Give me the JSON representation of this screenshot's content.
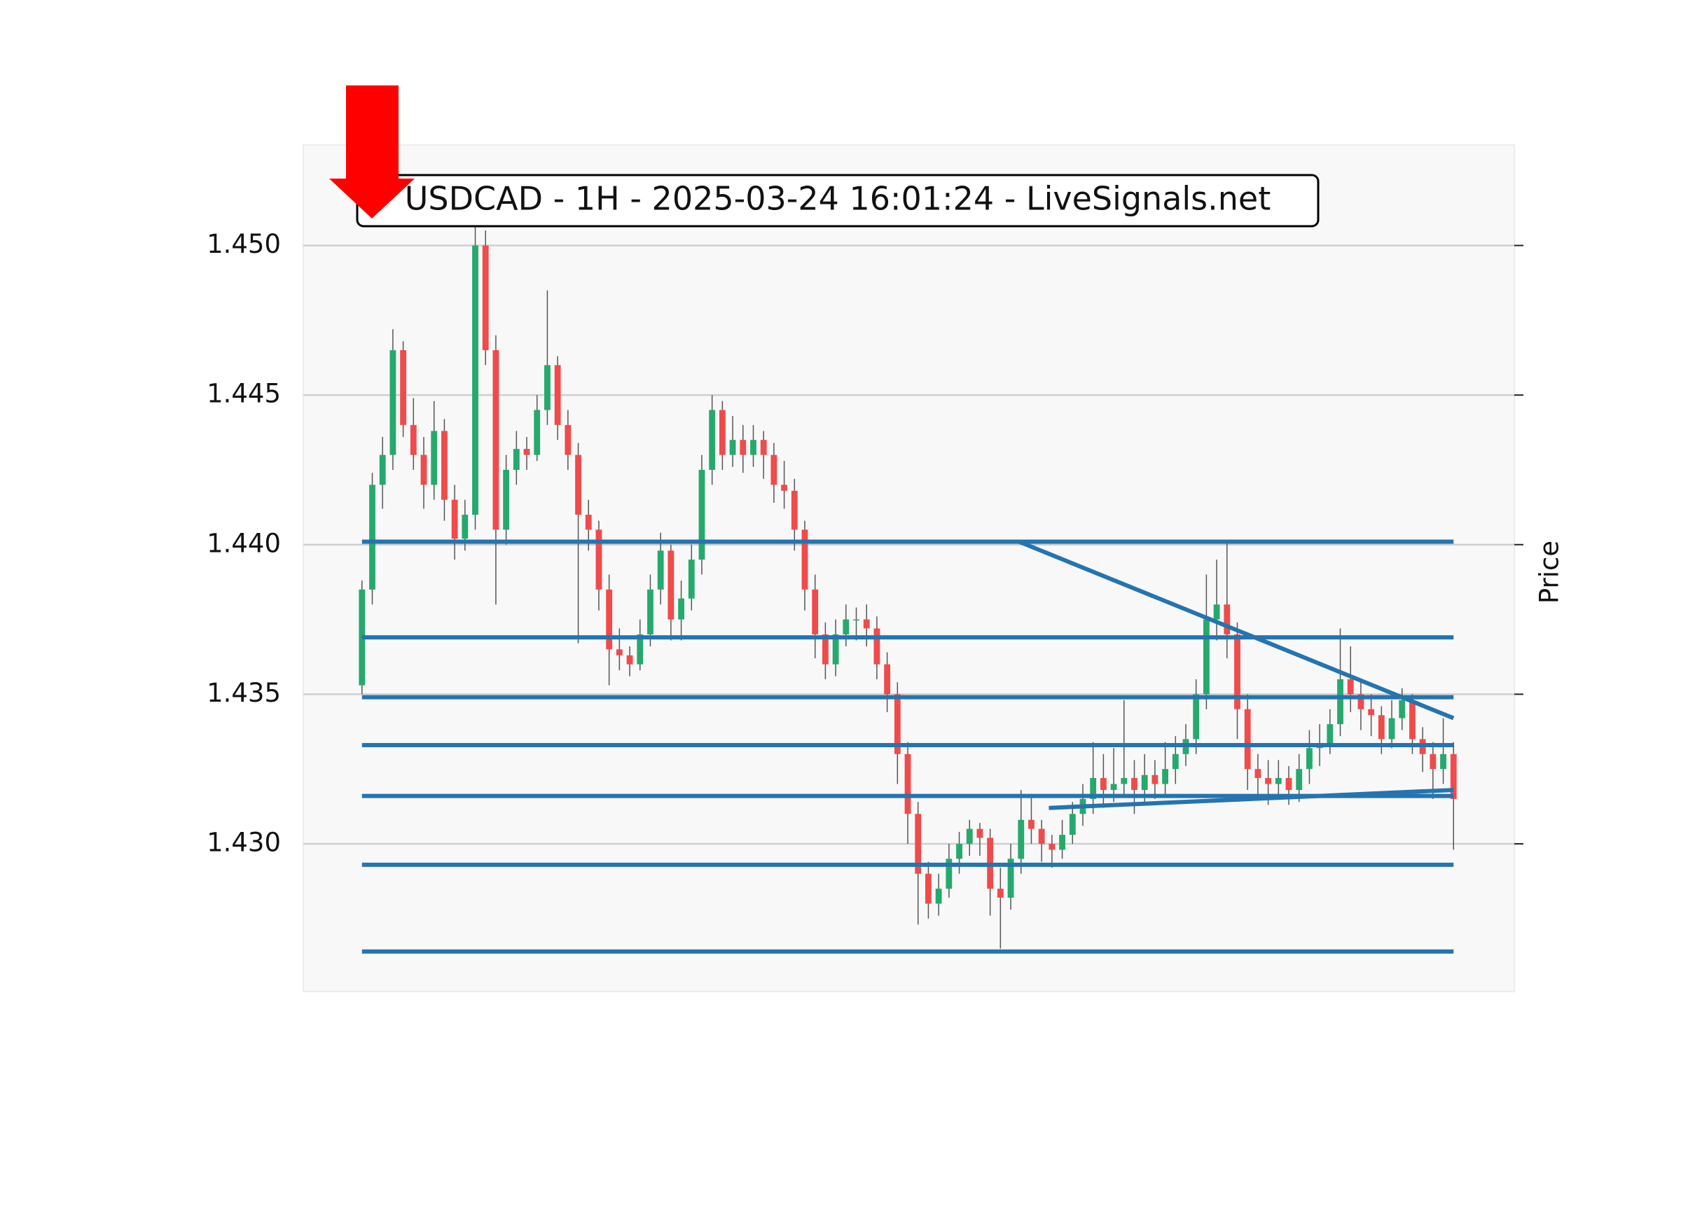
{
  "chart_data": {
    "type": "candlestick",
    "title": "USDCAD - 1H - 2025-03-24 16:01:24 - LiveSignals.net",
    "y_label": "Price",
    "ylim": [
      1.42506,
      1.45336
    ],
    "yticks": [
      {
        "value": 1.43,
        "label": "1.430"
      },
      {
        "value": 1.435,
        "label": "1.435"
      },
      {
        "value": 1.44,
        "label": "1.440"
      },
      {
        "value": 1.445,
        "label": "1.445"
      },
      {
        "value": 1.45,
        "label": "1.450"
      }
    ],
    "xlim": [
      -5.7,
      111.9
    ],
    "grid": true,
    "up_color": "#26a96c",
    "down_color": "#ef4b4b",
    "line_color": "#2474b0",
    "candles": [
      [
        1.4353,
        1.4388,
        1.435,
        1.4385
      ],
      [
        1.4385,
        1.4424,
        1.438,
        1.442
      ],
      [
        1.442,
        1.4436,
        1.4412,
        1.443
      ],
      [
        1.443,
        1.4472,
        1.4425,
        1.4465
      ],
      [
        1.4465,
        1.4468,
        1.4436,
        1.444
      ],
      [
        1.444,
        1.4449,
        1.4425,
        1.443
      ],
      [
        1.443,
        1.4436,
        1.4412,
        1.442
      ],
      [
        1.442,
        1.4448,
        1.4415,
        1.4438
      ],
      [
        1.4438,
        1.4442,
        1.4408,
        1.4415
      ],
      [
        1.4415,
        1.442,
        1.4395,
        1.4402
      ],
      [
        1.4402,
        1.4415,
        1.4398,
        1.441
      ],
      [
        1.441,
        1.4515,
        1.4405,
        1.45
      ],
      [
        1.45,
        1.4505,
        1.446,
        1.4465
      ],
      [
        1.4465,
        1.447,
        1.438,
        1.4405
      ],
      [
        1.4405,
        1.443,
        1.44,
        1.4425
      ],
      [
        1.4425,
        1.4438,
        1.442,
        1.4432
      ],
      [
        1.4432,
        1.4436,
        1.4425,
        1.443
      ],
      [
        1.443,
        1.445,
        1.4428,
        1.4445
      ],
      [
        1.4445,
        1.4485,
        1.444,
        1.446
      ],
      [
        1.446,
        1.4463,
        1.4435,
        1.444
      ],
      [
        1.444,
        1.4445,
        1.4425,
        1.443
      ],
      [
        1.443,
        1.4434,
        1.4367,
        1.441
      ],
      [
        1.441,
        1.4415,
        1.4398,
        1.4405
      ],
      [
        1.4405,
        1.4408,
        1.4378,
        1.4385
      ],
      [
        1.4385,
        1.439,
        1.4353,
        1.4365
      ],
      [
        1.4365,
        1.4372,
        1.4358,
        1.4363
      ],
      [
        1.4363,
        1.4366,
        1.4356,
        1.436
      ],
      [
        1.436,
        1.4375,
        1.4358,
        1.437
      ],
      [
        1.437,
        1.439,
        1.4366,
        1.4385
      ],
      [
        1.4385,
        1.4404,
        1.438,
        1.4398
      ],
      [
        1.4398,
        1.44,
        1.4368,
        1.4375
      ],
      [
        1.4375,
        1.4388,
        1.4368,
        1.4382
      ],
      [
        1.4382,
        1.44,
        1.4378,
        1.4395
      ],
      [
        1.4395,
        1.443,
        1.439,
        1.4425
      ],
      [
        1.4425,
        1.445,
        1.442,
        1.4445
      ],
      [
        1.4445,
        1.4448,
        1.4425,
        1.443
      ],
      [
        1.443,
        1.4443,
        1.4426,
        1.4435
      ],
      [
        1.4435,
        1.444,
        1.4424,
        1.443
      ],
      [
        1.443,
        1.444,
        1.4426,
        1.4435
      ],
      [
        1.4435,
        1.4438,
        1.4422,
        1.443
      ],
      [
        1.443,
        1.4434,
        1.4414,
        1.442
      ],
      [
        1.442,
        1.4428,
        1.4412,
        1.4418
      ],
      [
        1.4418,
        1.4422,
        1.4398,
        1.4405
      ],
      [
        1.4405,
        1.4408,
        1.4378,
        1.4385
      ],
      [
        1.4385,
        1.439,
        1.4362,
        1.437
      ],
      [
        1.437,
        1.4374,
        1.4355,
        1.436
      ],
      [
        1.436,
        1.4375,
        1.4356,
        1.437
      ],
      [
        1.437,
        1.438,
        1.4366,
        1.4375
      ],
      [
        1.4375,
        1.4379,
        1.4368,
        1.4375
      ],
      [
        1.4375,
        1.438,
        1.4366,
        1.4372
      ],
      [
        1.4372,
        1.4376,
        1.4355,
        1.436
      ],
      [
        1.436,
        1.4364,
        1.4344,
        1.435
      ],
      [
        1.435,
        1.4354,
        1.432,
        1.433
      ],
      [
        1.433,
        1.4334,
        1.43,
        1.431
      ],
      [
        1.431,
        1.4314,
        1.4273,
        1.429
      ],
      [
        1.429,
        1.4294,
        1.4275,
        1.428
      ],
      [
        1.428,
        1.429,
        1.4276,
        1.4285
      ],
      [
        1.4285,
        1.43,
        1.4282,
        1.4295
      ],
      [
        1.4295,
        1.4304,
        1.429,
        1.43
      ],
      [
        1.43,
        1.4308,
        1.4296,
        1.4305
      ],
      [
        1.4305,
        1.4307,
        1.4296,
        1.4302
      ],
      [
        1.4302,
        1.4305,
        1.4276,
        1.4285
      ],
      [
        1.4285,
        1.4292,
        1.4265,
        1.4282
      ],
      [
        1.4282,
        1.43,
        1.4278,
        1.4295
      ],
      [
        1.4295,
        1.4318,
        1.429,
        1.4308
      ],
      [
        1.4308,
        1.4316,
        1.43,
        1.4305
      ],
      [
        1.4305,
        1.4308,
        1.4294,
        1.43
      ],
      [
        1.43,
        1.4303,
        1.4292,
        1.4298
      ],
      [
        1.4298,
        1.4308,
        1.4295,
        1.4303
      ],
      [
        1.4303,
        1.4314,
        1.43,
        1.431
      ],
      [
        1.431,
        1.432,
        1.4306,
        1.4315
      ],
      [
        1.4315,
        1.4334,
        1.431,
        1.4322
      ],
      [
        1.4322,
        1.433,
        1.4312,
        1.4318
      ],
      [
        1.4318,
        1.4332,
        1.4314,
        1.432
      ],
      [
        1.432,
        1.4348,
        1.4316,
        1.4322
      ],
      [
        1.4322,
        1.4328,
        1.431,
        1.4318
      ],
      [
        1.4318,
        1.433,
        1.4314,
        1.4323
      ],
      [
        1.4323,
        1.4328,
        1.4315,
        1.432
      ],
      [
        1.432,
        1.4334,
        1.4316,
        1.4325
      ],
      [
        1.4325,
        1.4336,
        1.432,
        1.433
      ],
      [
        1.433,
        1.434,
        1.4326,
        1.4335
      ],
      [
        1.4335,
        1.4355,
        1.433,
        1.435
      ],
      [
        1.435,
        1.439,
        1.4345,
        1.4375
      ],
      [
        1.4375,
        1.4395,
        1.4368,
        1.438
      ],
      [
        1.438,
        1.4401,
        1.4362,
        1.437
      ],
      [
        1.437,
        1.4374,
        1.4335,
        1.4345
      ],
      [
        1.4345,
        1.435,
        1.4318,
        1.4325
      ],
      [
        1.4325,
        1.433,
        1.4316,
        1.4322
      ],
      [
        1.4322,
        1.4328,
        1.4313,
        1.432
      ],
      [
        1.432,
        1.4328,
        1.4315,
        1.4322
      ],
      [
        1.4322,
        1.4326,
        1.4313,
        1.4318
      ],
      [
        1.4318,
        1.433,
        1.4314,
        1.4325
      ],
      [
        1.4325,
        1.4338,
        1.432,
        1.4332
      ],
      [
        1.4332,
        1.434,
        1.4326,
        1.4333
      ],
      [
        1.4333,
        1.4345,
        1.433,
        1.434
      ],
      [
        1.434,
        1.4372,
        1.4336,
        1.4355
      ],
      [
        1.4355,
        1.4366,
        1.4344,
        1.435
      ],
      [
        1.435,
        1.4355,
        1.4338,
        1.4345
      ],
      [
        1.4345,
        1.435,
        1.4336,
        1.4343
      ],
      [
        1.4343,
        1.4346,
        1.433,
        1.4335
      ],
      [
        1.4335,
        1.4348,
        1.4332,
        1.4342
      ],
      [
        1.4342,
        1.4352,
        1.4338,
        1.4348
      ],
      [
        1.4348,
        1.435,
        1.433,
        1.4335
      ],
      [
        1.4335,
        1.4339,
        1.4324,
        1.433
      ],
      [
        1.433,
        1.4334,
        1.4315,
        1.4325
      ],
      [
        1.4325,
        1.4342,
        1.432,
        1.433
      ],
      [
        1.433,
        1.4334,
        1.4298,
        1.4315
      ]
    ],
    "levels": [
      1.4401,
      1.4369,
      1.4349,
      1.4333,
      1.4316,
      1.4293,
      1.4264
    ],
    "trendlines": [
      {
        "x": [
          63.8,
          106
        ],
        "y": [
          1.4401,
          1.4342
        ]
      },
      {
        "x": [
          66.7,
          106
        ],
        "y": [
          1.4312,
          1.4318
        ]
      }
    ]
  }
}
